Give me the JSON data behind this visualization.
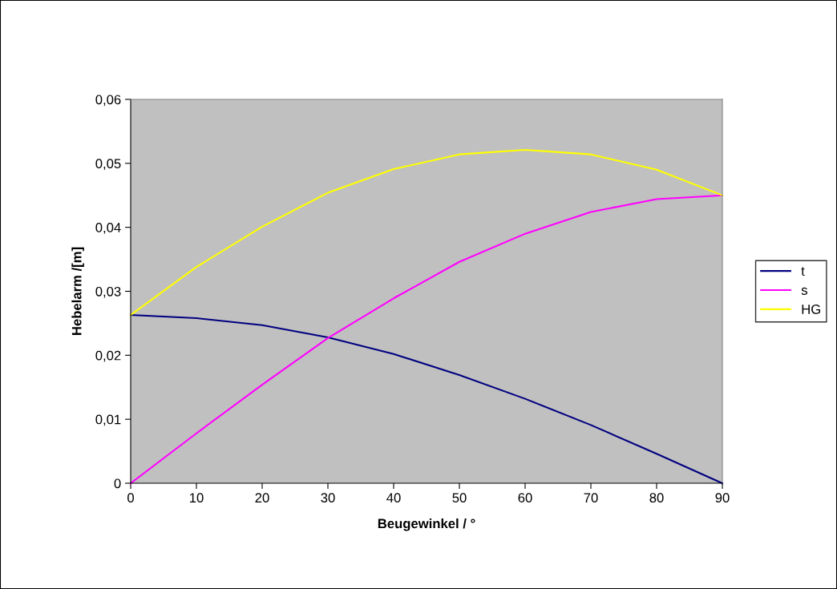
{
  "chart_data": {
    "type": "line",
    "xlabel": "Beugewinkel / °",
    "ylabel": "Hebelarm /[m]",
    "x": [
      0,
      10,
      20,
      30,
      40,
      50,
      60,
      70,
      80,
      90
    ],
    "series": [
      {
        "name": "t",
        "color": "#000080",
        "values": [
          0.0263,
          0.0258,
          0.0247,
          0.0228,
          0.0202,
          0.0169,
          0.0132,
          0.0091,
          0.0046,
          0.0
        ]
      },
      {
        "name": "s",
        "color": "#ff00ff",
        "values": [
          0.0,
          0.0078,
          0.0154,
          0.0227,
          0.0289,
          0.0346,
          0.039,
          0.0424,
          0.0444,
          0.045
        ]
      },
      {
        "name": "HG",
        "color": "#ffff00",
        "values": [
          0.0263,
          0.0338,
          0.0401,
          0.0454,
          0.0491,
          0.0514,
          0.0521,
          0.0514,
          0.049,
          0.045
        ]
      }
    ],
    "xlim": [
      0,
      90
    ],
    "xticks": [
      0,
      10,
      20,
      30,
      40,
      50,
      60,
      70,
      80,
      90
    ],
    "ylim": [
      0,
      0.06
    ],
    "yticks": [
      {
        "value": 0,
        "label": "0"
      },
      {
        "value": 0.01,
        "label": "0,01"
      },
      {
        "value": 0.02,
        "label": "0,02"
      },
      {
        "value": 0.03,
        "label": "0,03"
      },
      {
        "value": 0.04,
        "label": "0,04"
      },
      {
        "value": 0.05,
        "label": "0,05"
      },
      {
        "value": 0.06,
        "label": "0,06"
      }
    ],
    "grid": false,
    "legend": "right",
    "marker": "none",
    "line_style": "solid"
  }
}
